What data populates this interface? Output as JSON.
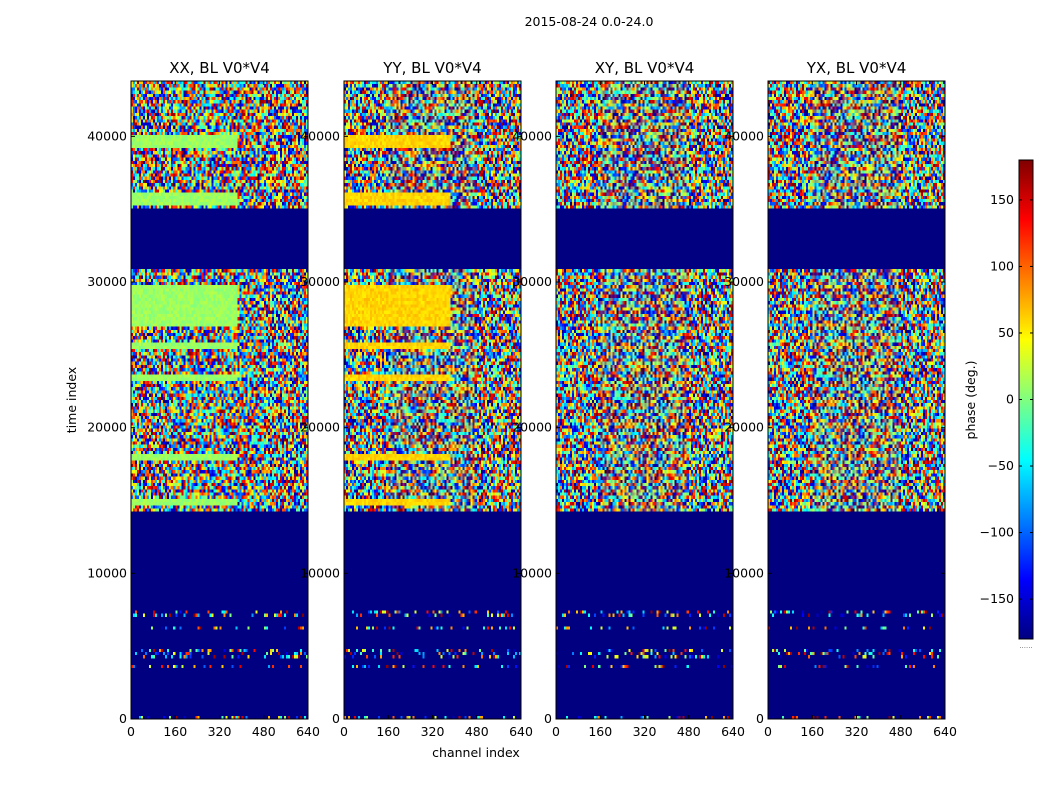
{
  "chart_data": {
    "type": "heatmap",
    "suptitle": "2015-08-24 0.0-24.0",
    "xlabel": "channel index",
    "ylabel": "time index",
    "xlim": [
      0,
      640
    ],
    "ylim": [
      0,
      43800
    ],
    "xticks": [
      0,
      160,
      320,
      480,
      640
    ],
    "yticks": [
      0,
      10000,
      20000,
      30000,
      40000
    ],
    "colormap": "jet",
    "colorbar": {
      "label": "phase (deg.)",
      "range": [
        -180,
        180
      ],
      "ticks": [
        -150,
        -100,
        -50,
        0,
        50,
        100,
        150
      ],
      "extra_label": "......"
    },
    "panels": [
      {
        "title": "XX, BL V0*V4"
      },
      {
        "title": "YY, BL V0*V4"
      },
      {
        "title": "XY, BL V0*V4"
      },
      {
        "title": "YX, BL V0*V4"
      }
    ],
    "flagged_time_ranges": [
      [
        300,
        1050
      ],
      [
        1200,
        3500
      ],
      [
        3700,
        4100
      ],
      [
        4900,
        6100
      ],
      [
        6400,
        7100
      ],
      [
        7500,
        14300
      ],
      [
        30900,
        35000
      ]
    ],
    "sparse_time_ranges": [
      [
        0,
        300
      ],
      [
        1050,
        1200
      ],
      [
        3500,
        3700
      ],
      [
        4100,
        4900
      ],
      [
        6100,
        6400
      ],
      [
        7100,
        7500
      ]
    ],
    "smooth_bands": {
      "XX": {
        "channel_range": [
          0,
          385
        ],
        "phase": 10,
        "time_ranges": [
          [
            14700,
            15200
          ],
          [
            17800,
            18200
          ],
          [
            23300,
            23700
          ],
          [
            25300,
            25800
          ],
          [
            27000,
            29800
          ],
          [
            35200,
            36100
          ],
          [
            39200,
            40100
          ]
        ]
      },
      "YY": {
        "channel_range": [
          0,
          385
        ],
        "phase": 60,
        "time_ranges": [
          [
            14700,
            15200
          ],
          [
            17800,
            18200
          ],
          [
            23300,
            23700
          ],
          [
            25300,
            25800
          ],
          [
            27000,
            29800
          ],
          [
            35200,
            36100
          ],
          [
            39200,
            40100
          ]
        ]
      },
      "XY": {
        "channel_range": [
          0,
          0
        ],
        "phase": 0,
        "time_ranges": []
      },
      "YX": {
        "channel_range": [
          0,
          0
        ],
        "phase": 0,
        "time_ranges": []
      }
    }
  }
}
